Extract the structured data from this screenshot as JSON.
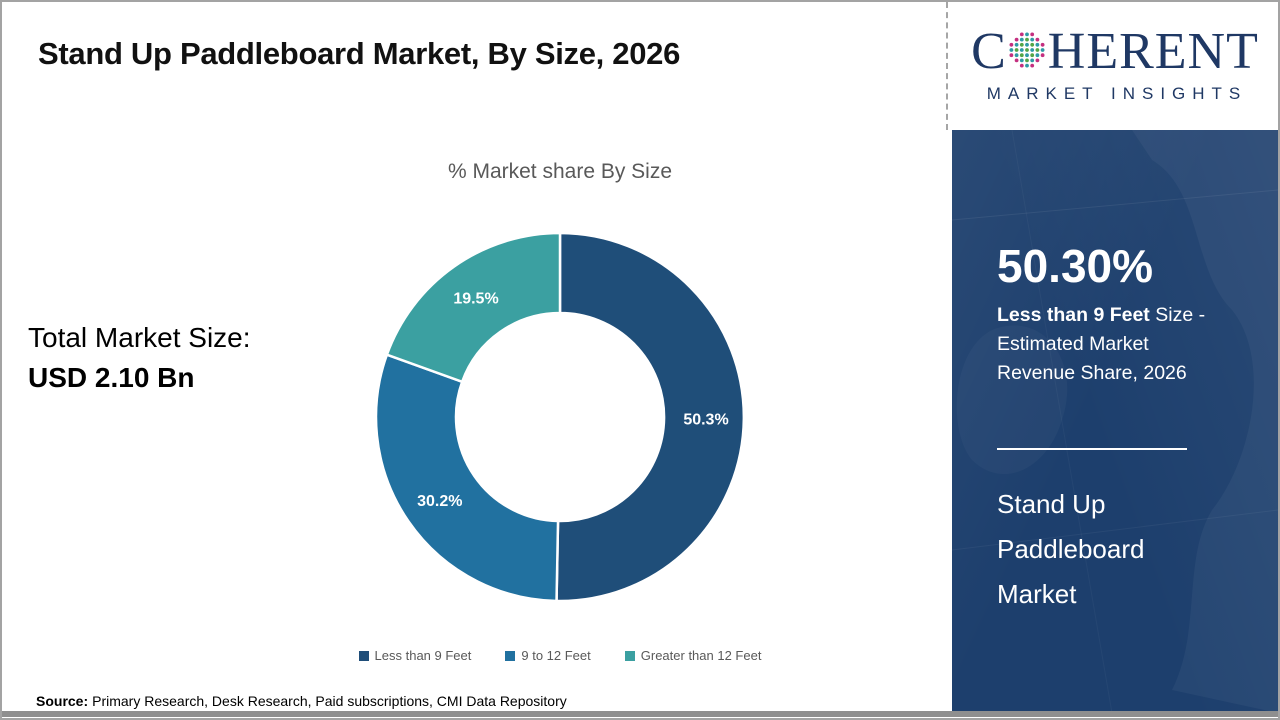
{
  "theme": {
    "sidebar_bg": "#1D3F6D",
    "logo_navy": "#1F3864",
    "text_gray": "#595959",
    "logo_dot_teal": "#2E9AA6",
    "logo_dot_green": "#54A546",
    "logo_dot_magenta": "#C42F7F"
  },
  "header": {
    "title": "Stand Up Paddleboard Market, By Size, 2026"
  },
  "logo": {
    "brand_initial": "C",
    "brand_rest": "HERENT",
    "subtitle": "MARKET INSIGHTS"
  },
  "chart_data": {
    "type": "pie",
    "donut": true,
    "title": "% Market share By Size",
    "categories": [
      "Less than 9 Feet",
      "9 to 12 Feet",
      "Greater than 12 Feet"
    ],
    "values": [
      50.3,
      30.2,
      19.5
    ],
    "labels": [
      "50.3%",
      "30.2%",
      "19.5%"
    ],
    "colors": [
      "#1F4E79",
      "#2171A0",
      "#3BA0A1"
    ],
    "start_angle_deg": 0,
    "direction": "clockwise",
    "legend_position": "bottom"
  },
  "left_panel": {
    "total_label": "Total Market Size:",
    "total_value": "USD 2.10 Bn"
  },
  "sidebar": {
    "stat_value": "50.30%",
    "stat_bold": "Less than 9 Feet",
    "stat_rest": " Size - Estimated Market Revenue Share, 2026",
    "market_name": "Stand Up Paddleboard Market"
  },
  "footer": {
    "source_label": "Source:",
    "source_text": "Primary Research, Desk Research, Paid subscriptions, CMI Data Repository"
  }
}
